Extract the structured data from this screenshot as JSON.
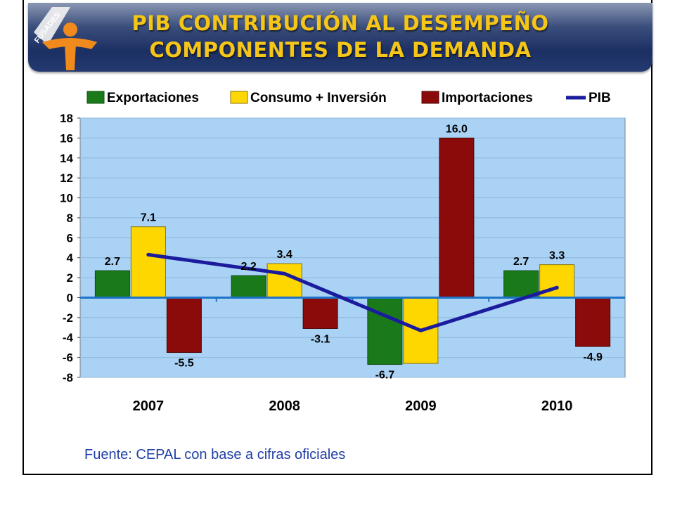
{
  "header": {
    "title_line1": "PIB CONTRIBUCIÓN AL DESEMPEÑO",
    "title_line2": "COMPONENTES DE LA DEMANDA",
    "logo_text": "FUSADES",
    "logo_icon": "fusades-logo-icon"
  },
  "footnote": "Fuente: CEPAL con base a cifras oficiales",
  "colors": {
    "exportaciones": "#1a7a1a",
    "consumo": "#ffd700",
    "importaciones": "#8b0a0a",
    "pib": "#1b1b9e",
    "plot_bg": "#a9d2f5",
    "title": "#f5c518"
  },
  "chart_data": {
    "type": "bar",
    "categories": [
      "2007",
      "2008",
      "2009",
      "2010"
    ],
    "series": [
      {
        "name": "Exportaciones",
        "values": [
          2.7,
          2.2,
          -6.7,
          2.7
        ],
        "labels": [
          "2.7",
          "2.2",
          "-6.7",
          "2.7"
        ]
      },
      {
        "name": "Consumo + Inversión",
        "values": [
          7.1,
          3.4,
          -6.6,
          3.3
        ],
        "labels": [
          "7.1",
          "3.4",
          "",
          "3.3"
        ]
      },
      {
        "name": "Importaciones",
        "values": [
          -5.5,
          -3.1,
          16.0,
          -4.9
        ],
        "labels": [
          "-5.5",
          "-3.1",
          "16.0",
          "-4.9"
        ]
      }
    ],
    "line_series": {
      "name": "PIB",
      "type": "line",
      "values": [
        4.3,
        2.4,
        -3.3,
        1.0
      ]
    },
    "ylim": [
      -8,
      18
    ],
    "yticks": [
      "-8",
      "-6",
      "-4",
      "-2",
      "0",
      "2",
      "4",
      "6",
      "8",
      "10",
      "12",
      "14",
      "16",
      "18"
    ],
    "grid": true,
    "legend_position": "top"
  }
}
